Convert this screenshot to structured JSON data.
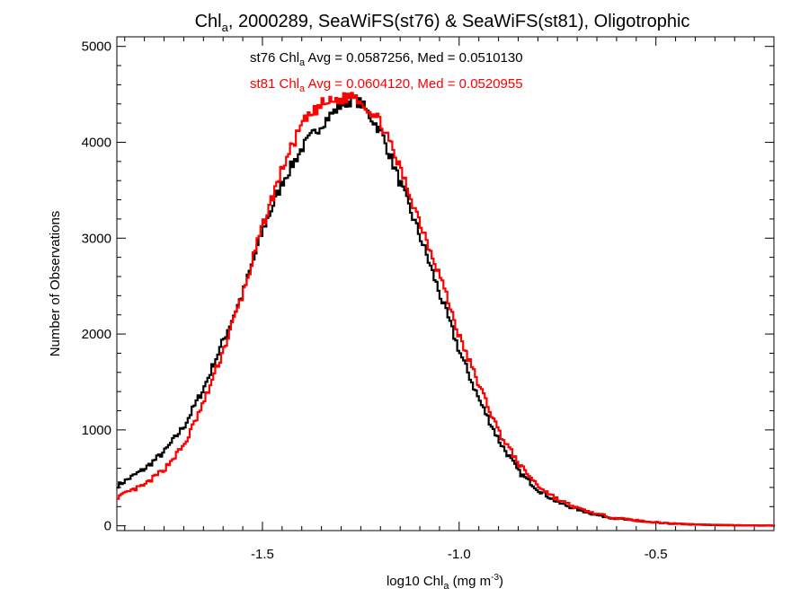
{
  "chart_data": {
    "type": "line",
    "title": {
      "prefix": "Chl",
      "sub": "a",
      "suffix": ", 2000289, SeaWiFS(st76) & SeaWiFS(st81), Oligotrophic"
    },
    "xlabel": {
      "prefix": "log10 Chl",
      "sub": "a",
      "mid": " (mg m",
      "sup": "-3",
      "suffix": ")"
    },
    "ylabel": "Number of Observations",
    "xlim": [
      -1.87,
      -0.2
    ],
    "ylim": [
      -50,
      5100
    ],
    "xticks": [
      {
        "value": -1.5,
        "label": "-1.5"
      },
      {
        "value": -1.0,
        "label": "-1.0"
      },
      {
        "value": -0.5,
        "label": "-0.5"
      }
    ],
    "yticks": [
      {
        "value": 0,
        "label": "0"
      },
      {
        "value": 1000,
        "label": "1000"
      },
      {
        "value": 2000,
        "label": "2000"
      },
      {
        "value": 3000,
        "label": "3000"
      },
      {
        "value": 4000,
        "label": "4000"
      },
      {
        "value": 5000,
        "label": "5000"
      }
    ],
    "annotations": [
      {
        "series": "st76",
        "color": "#000000",
        "prefix": "st76 Chl",
        "sub": "a",
        "suffix": " Avg = 0.0587256, Med = 0.0510130"
      },
      {
        "series": "st81",
        "color": "#ff0000",
        "prefix": "st81 Chl",
        "sub": "a",
        "suffix": " Avg = 0.0604120, Med = 0.0520955"
      }
    ],
    "series": [
      {
        "color": "#000000",
        "x": [
          -1.87,
          -1.8,
          -1.75,
          -1.7,
          -1.65,
          -1.6,
          -1.55,
          -1.5,
          -1.45,
          -1.4,
          -1.35,
          -1.3,
          -1.27,
          -1.25,
          -1.2,
          -1.15,
          -1.1,
          -1.05,
          -1.0,
          -0.95,
          -0.9,
          -0.85,
          -0.8,
          -0.75,
          -0.7,
          -0.65,
          -0.6,
          -0.55,
          -0.5,
          -0.45,
          -0.4,
          -0.35,
          -0.3,
          -0.25,
          -0.2
        ],
        "y": [
          420,
          600,
          780,
          1050,
          1450,
          1950,
          2450,
          3100,
          3600,
          3950,
          4200,
          4400,
          4450,
          4400,
          4100,
          3550,
          3000,
          2400,
          1800,
          1300,
          880,
          560,
          370,
          240,
          170,
          110,
          75,
          50,
          30,
          20,
          12,
          8,
          5,
          3,
          2
        ]
      },
      {
        "color": "#ff0000",
        "x": [
          -1.87,
          -1.8,
          -1.75,
          -1.7,
          -1.65,
          -1.6,
          -1.55,
          -1.5,
          -1.45,
          -1.4,
          -1.35,
          -1.3,
          -1.27,
          -1.25,
          -1.2,
          -1.15,
          -1.1,
          -1.05,
          -1.0,
          -0.95,
          -0.9,
          -0.85,
          -0.8,
          -0.75,
          -0.7,
          -0.65,
          -0.6,
          -0.55,
          -0.5,
          -0.45,
          -0.4,
          -0.35,
          -0.3,
          -0.25,
          -0.2
        ],
        "y": [
          300,
          430,
          600,
          850,
          1300,
          1850,
          2450,
          3150,
          3750,
          4200,
          4400,
          4450,
          4500,
          4420,
          4200,
          3700,
          3150,
          2600,
          1950,
          1450,
          970,
          640,
          410,
          270,
          180,
          120,
          80,
          55,
          35,
          22,
          14,
          9,
          6,
          4,
          2
        ]
      }
    ]
  }
}
